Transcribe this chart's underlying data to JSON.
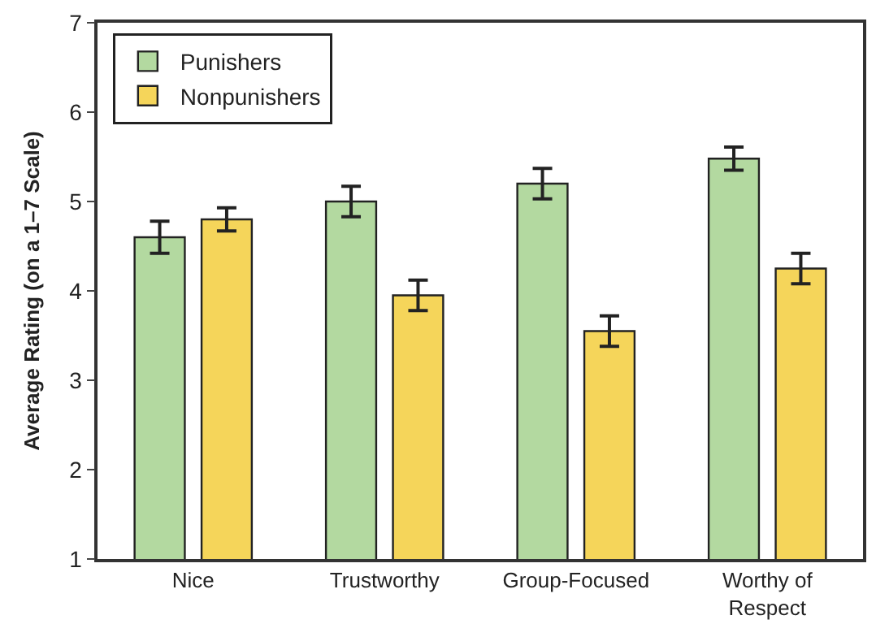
{
  "chart_data": {
    "type": "bar",
    "ylabel": "Average Rating (on a 1–7 Scale)",
    "categories": [
      "Nice",
      "Trustworthy",
      "Group-Focused",
      "Worthy of\nRespect"
    ],
    "series": [
      {
        "name": "Punishers",
        "color": "#b3d9a0",
        "values": [
          4.6,
          5.0,
          5.2,
          5.48
        ],
        "errors": [
          0.18,
          0.17,
          0.17,
          0.13
        ]
      },
      {
        "name": "Nonpunishers",
        "color": "#f5d55a",
        "values": [
          4.8,
          3.95,
          3.55,
          4.25
        ],
        "errors": [
          0.13,
          0.17,
          0.17,
          0.17
        ]
      }
    ],
    "ylim": [
      1,
      7
    ],
    "yticks": [
      1,
      2,
      3,
      4,
      5,
      6,
      7
    ],
    "legend": "top left"
  }
}
